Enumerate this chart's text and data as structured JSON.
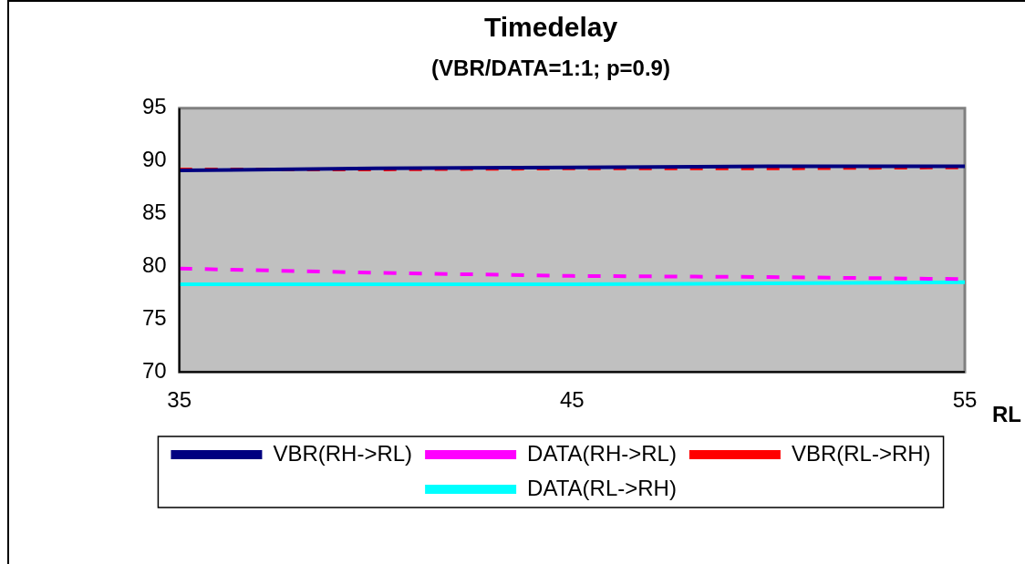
{
  "chart_data": {
    "type": "line",
    "title": "Timedelay",
    "subtitle": "(VBR/DATA=1:1; p=0.9)",
    "xlabel": "RL",
    "x": [
      35,
      40,
      45,
      50,
      55
    ],
    "series": [
      {
        "name": "VBR(RH->RL)",
        "color": "#000080",
        "line_style": "solid",
        "values": [
          89.1,
          89.3,
          89.4,
          89.5,
          89.5
        ]
      },
      {
        "name": "VBR(RL->RH)",
        "color": "#ff0000",
        "line_style": "dashed",
        "values": [
          89.2,
          89.2,
          89.3,
          89.3,
          89.4
        ]
      },
      {
        "name": "DATA(RH->RL)",
        "color": "#ff00ff",
        "line_style": "dashed",
        "values": [
          79.8,
          79.4,
          79.1,
          79.0,
          78.8
        ]
      },
      {
        "name": "DATA(RL->RH)",
        "color": "#00ffff",
        "line_style": "solid",
        "values": [
          78.3,
          78.3,
          78.3,
          78.4,
          78.5
        ]
      }
    ],
    "xlim": [
      35,
      55
    ],
    "xticks": [
      35,
      45,
      55
    ],
    "ylim": [
      70,
      95
    ],
    "yticks": [
      70,
      75,
      80,
      85,
      90,
      95
    ],
    "grid": false,
    "legend": "bottom",
    "marker": "none"
  }
}
